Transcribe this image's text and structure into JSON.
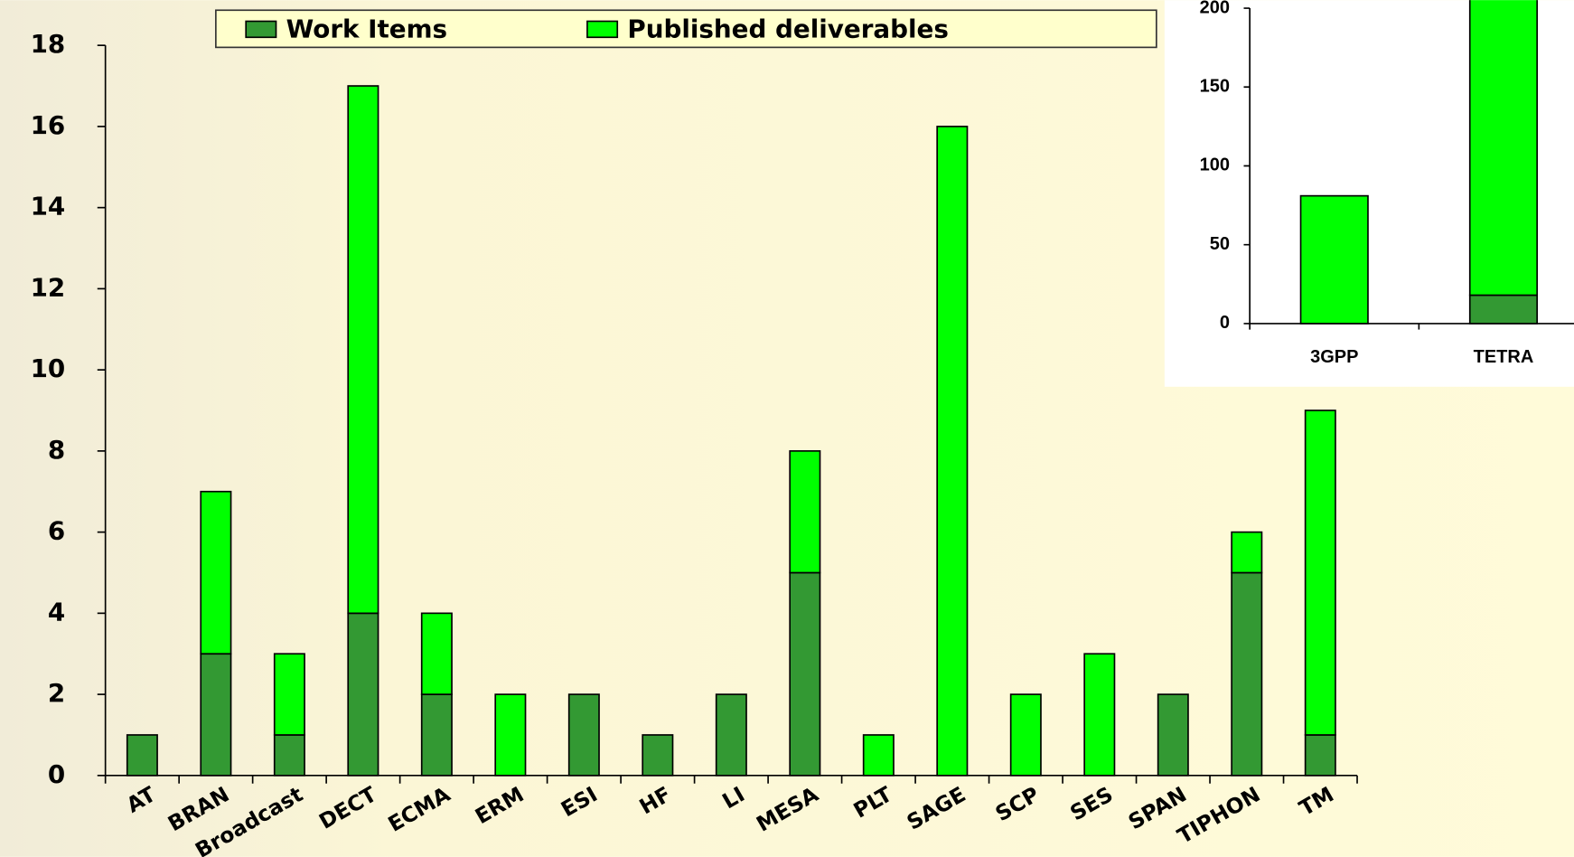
{
  "chart_data": [
    {
      "type": "bar",
      "stacked": true,
      "categories": [
        "AT",
        "BRAN",
        "Broadcast",
        "DECT",
        "ECMA",
        "ERM",
        "ESI",
        "HF",
        "LI",
        "MESA",
        "PLT",
        "SAGE",
        "SCP",
        "SES",
        "SPAN",
        "TIPHON",
        "TM"
      ],
      "series": [
        {
          "name": "Work Items",
          "color": "#339933",
          "values": [
            1,
            3,
            1,
            4,
            2,
            0,
            2,
            1,
            2,
            5,
            0,
            0,
            0,
            0,
            2,
            5,
            1
          ]
        },
        {
          "name": "Published deliverables",
          "color": "#00ff00",
          "values": [
            0,
            4,
            2,
            13,
            2,
            2,
            0,
            0,
            0,
            3,
            1,
            16,
            2,
            3,
            0,
            1,
            8
          ]
        }
      ],
      "ylim": [
        0,
        18
      ],
      "yticks": [
        0,
        2,
        4,
        6,
        8,
        10,
        12,
        14,
        16,
        18
      ],
      "legend": "top"
    },
    {
      "type": "bar",
      "stacked": true,
      "categories": [
        "3GPP",
        "TETRA"
      ],
      "series": [
        {
          "color": "#339933",
          "values": [
            0,
            18
          ]
        },
        {
          "color": "#00ff00",
          "values": [
            81,
            200
          ]
        }
      ],
      "ylim": [
        0,
        200
      ],
      "yticks": [
        0,
        50,
        100,
        150,
        200
      ]
    }
  ]
}
